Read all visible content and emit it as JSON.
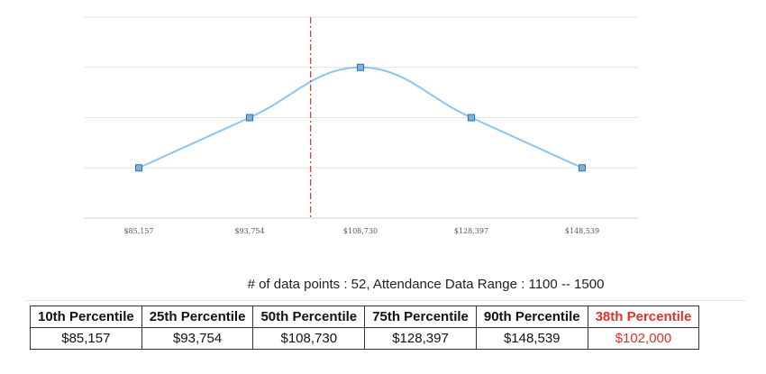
{
  "chart_data": {
    "type": "line",
    "categories": [
      "$85,157",
      "$93,754",
      "$108,730",
      "$128,397",
      "$148,539"
    ],
    "values": [
      1,
      2,
      3,
      2,
      1
    ],
    "ylim": [
      0,
      4
    ],
    "grid": true,
    "highlight_value": "$102,000",
    "highlight_position": 1.55,
    "line_color": "#8cc4ee",
    "marker_color": "#7fb1e0",
    "highlight_line_color": "#e0302a"
  },
  "info": {
    "text": "# of data points : 52, Attendance Data Range : 1100 -- 1500"
  },
  "table": {
    "headers": [
      "10th Percentile",
      "25th Percentile",
      "50th Percentile",
      "75th Percentile",
      "90th Percentile",
      "38th Percentile"
    ],
    "values": [
      "$85,157",
      "$93,754",
      "$108,730",
      "$128,397",
      "$148,539",
      "$102,000"
    ],
    "highlight_color": "#e0302a"
  }
}
